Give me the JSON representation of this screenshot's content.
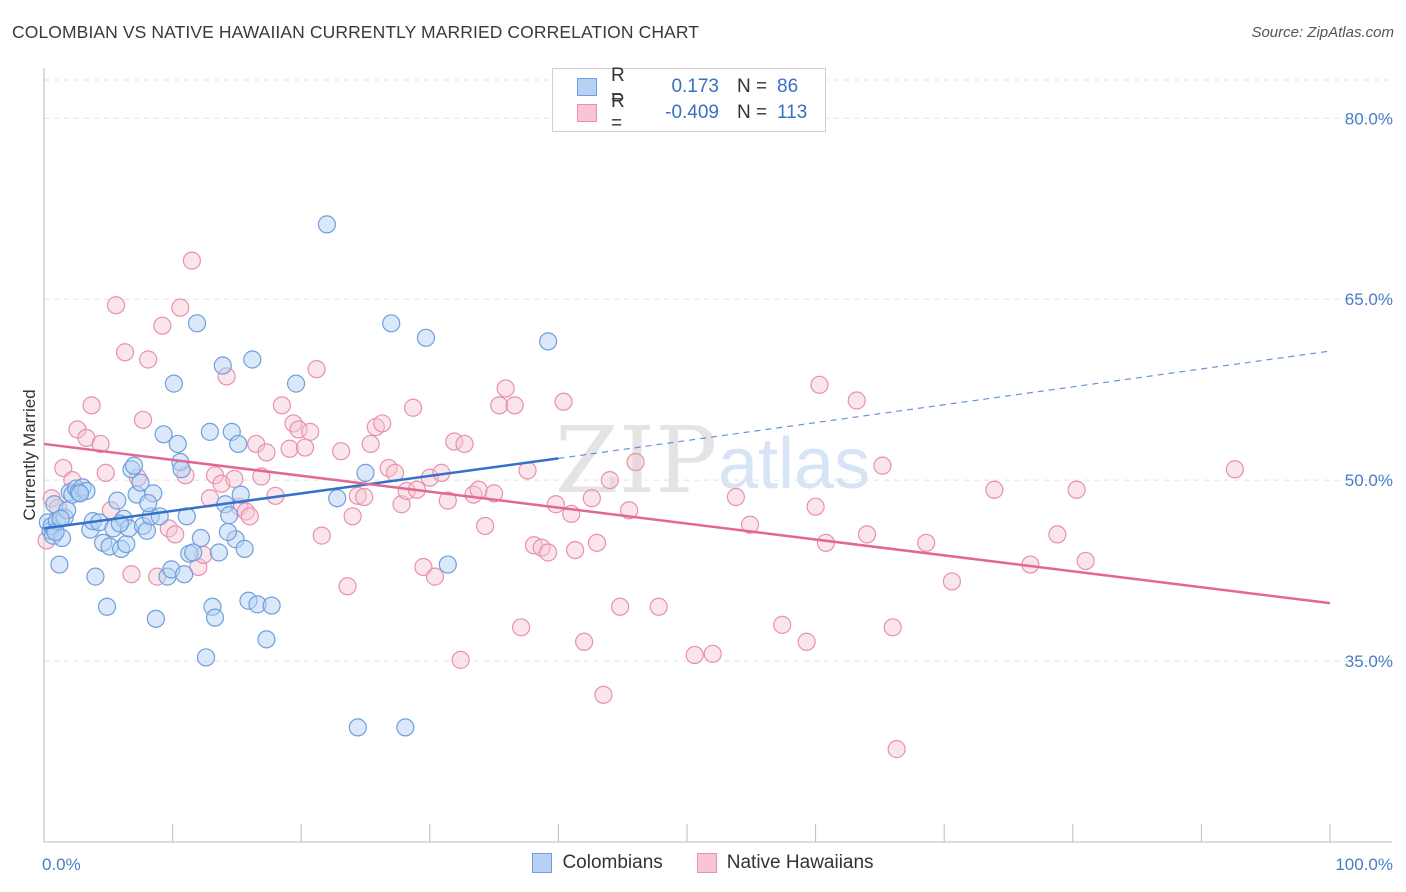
{
  "title": "COLOMBIAN VS NATIVE HAWAIIAN CURRENTLY MARRIED CORRELATION CHART",
  "source": "Source: ZipAtlas.com",
  "watermark": {
    "zip": "ZIP",
    "atlas": "atlas"
  },
  "colors": {
    "blue_fill": "#b6d1f3",
    "blue_stroke": "#6f9fdc",
    "blue_line": "#3571c9",
    "pink_fill": "#f7c5d5",
    "pink_stroke": "#e891ac",
    "pink_line": "#e2688f",
    "grid": "#e2e2e2",
    "tick_label": "#4a7cc7"
  },
  "legend": {
    "rows": [
      {
        "r_label": "R =",
        "r_value": "0.173",
        "n_label": "N =",
        "n_value": "86"
      },
      {
        "r_label": "R =",
        "r_value": "-0.409",
        "n_label": "N =",
        "n_value": "113"
      }
    ]
  },
  "bottom_legend": {
    "colombians": "Colombians",
    "native_hawaiians": "Native Hawaiians"
  },
  "chart_data": {
    "type": "scatter",
    "title": "COLOMBIAN VS NATIVE HAWAIIAN CURRENTLY MARRIED CORRELATION CHART",
    "xlabel": "",
    "ylabel": "Currently Married",
    "xlim": [
      0,
      100
    ],
    "ylim": [
      20,
      84
    ],
    "x_tick_labels": [
      "0.0%",
      "100.0%"
    ],
    "y_ticks": [
      35,
      50,
      65,
      80
    ],
    "y_tick_labels": [
      "35.0%",
      "50.0%",
      "65.0%",
      "80.0%"
    ],
    "grid": true,
    "legend_placement": "top-center",
    "series": [
      {
        "name": "Colombians",
        "r": 0.173,
        "n": 86,
        "trend": {
          "x0": 0,
          "y0": 46.0,
          "x1": 40,
          "y1": 51.8,
          "dashed_to_x": 100,
          "dashed_to_y": 60.7
        },
        "points": [
          [
            0.3,
            46.5
          ],
          [
            0.5,
            45.8
          ],
          [
            0.6,
            46.2
          ],
          [
            0.7,
            45.4
          ],
          [
            0.8,
            48.0
          ],
          [
            1.0,
            46.6
          ],
          [
            1.2,
            43.0
          ],
          [
            1.4,
            45.2
          ],
          [
            1.6,
            46.9
          ],
          [
            1.8,
            47.5
          ],
          [
            2.0,
            49.0
          ],
          [
            2.2,
            48.8
          ],
          [
            2.5,
            49.3
          ],
          [
            2.7,
            49.0
          ],
          [
            3.0,
            49.4
          ],
          [
            3.3,
            49.1
          ],
          [
            3.6,
            45.9
          ],
          [
            3.8,
            46.6
          ],
          [
            4.0,
            42.0
          ],
          [
            4.3,
            46.5
          ],
          [
            4.6,
            44.8
          ],
          [
            4.9,
            39.5
          ],
          [
            5.1,
            44.5
          ],
          [
            5.4,
            46.0
          ],
          [
            5.7,
            48.3
          ],
          [
            6.0,
            44.3
          ],
          [
            6.2,
            46.8
          ],
          [
            6.4,
            44.7
          ],
          [
            6.6,
            46.0
          ],
          [
            6.8,
            50.9
          ],
          [
            7.0,
            51.2
          ],
          [
            7.2,
            48.8
          ],
          [
            7.5,
            49.8
          ],
          [
            7.7,
            46.2
          ],
          [
            8.0,
            45.8
          ],
          [
            8.3,
            47.0
          ],
          [
            8.5,
            48.9
          ],
          [
            8.7,
            38.5
          ],
          [
            9.0,
            47.0
          ],
          [
            9.3,
            53.8
          ],
          [
            9.6,
            42.0
          ],
          [
            9.9,
            42.6
          ],
          [
            10.1,
            58.0
          ],
          [
            10.4,
            53.0
          ],
          [
            10.6,
            51.5
          ],
          [
            10.9,
            42.2
          ],
          [
            11.1,
            47.0
          ],
          [
            11.3,
            43.9
          ],
          [
            11.6,
            44.0
          ],
          [
            11.9,
            63.0
          ],
          [
            12.2,
            45.2
          ],
          [
            12.6,
            35.3
          ],
          [
            12.9,
            54.0
          ],
          [
            13.1,
            39.5
          ],
          [
            13.3,
            38.6
          ],
          [
            13.6,
            44.0
          ],
          [
            13.9,
            59.5
          ],
          [
            14.1,
            48.0
          ],
          [
            14.4,
            47.1
          ],
          [
            14.6,
            54.0
          ],
          [
            14.9,
            45.1
          ],
          [
            15.1,
            53.0
          ],
          [
            15.3,
            48.8
          ],
          [
            15.6,
            44.3
          ],
          [
            15.9,
            40.0
          ],
          [
            16.2,
            60.0
          ],
          [
            16.6,
            39.7
          ],
          [
            17.3,
            36.8
          ],
          [
            17.7,
            39.6
          ],
          [
            19.6,
            58.0
          ],
          [
            22.0,
            71.2
          ],
          [
            22.8,
            48.5
          ],
          [
            24.4,
            29.5
          ],
          [
            25.0,
            50.6
          ],
          [
            28.1,
            29.5
          ],
          [
            27.0,
            63.0
          ],
          [
            29.7,
            61.8
          ],
          [
            31.4,
            43.0
          ],
          [
            39.2,
            61.5
          ],
          [
            0.9,
            45.7
          ],
          [
            1.3,
            46.8
          ],
          [
            2.8,
            48.9
          ],
          [
            5.9,
            46.4
          ],
          [
            8.1,
            48.1
          ],
          [
            10.7,
            50.9
          ],
          [
            14.3,
            45.7
          ]
        ]
      },
      {
        "name": "Native Hawaiians",
        "r": -0.409,
        "n": 113,
        "trend": {
          "x0": 0,
          "y0": 53.0,
          "x1": 100,
          "y1": 39.8
        },
        "points": [
          [
            0.2,
            45.0
          ],
          [
            0.6,
            48.5
          ],
          [
            1.1,
            47.7
          ],
          [
            1.5,
            51.0
          ],
          [
            2.2,
            50.0
          ],
          [
            2.6,
            54.2
          ],
          [
            3.3,
            53.5
          ],
          [
            3.7,
            56.2
          ],
          [
            4.4,
            53.0
          ],
          [
            4.8,
            50.6
          ],
          [
            5.2,
            47.5
          ],
          [
            5.6,
            64.5
          ],
          [
            6.3,
            60.6
          ],
          [
            6.8,
            42.2
          ],
          [
            7.3,
            50.2
          ],
          [
            7.7,
            55.0
          ],
          [
            8.1,
            60.0
          ],
          [
            8.8,
            42.0
          ],
          [
            9.2,
            62.8
          ],
          [
            9.7,
            46.0
          ],
          [
            10.2,
            45.5
          ],
          [
            10.6,
            64.3
          ],
          [
            11.0,
            50.4
          ],
          [
            11.5,
            68.2
          ],
          [
            12.0,
            42.8
          ],
          [
            12.4,
            43.8
          ],
          [
            12.9,
            48.5
          ],
          [
            13.3,
            50.4
          ],
          [
            13.8,
            49.7
          ],
          [
            14.2,
            58.6
          ],
          [
            14.8,
            50.1
          ],
          [
            15.2,
            47.8
          ],
          [
            15.7,
            47.4
          ],
          [
            16.0,
            47.0
          ],
          [
            16.5,
            53.0
          ],
          [
            16.9,
            50.3
          ],
          [
            17.3,
            52.3
          ],
          [
            18.0,
            48.7
          ],
          [
            18.5,
            56.2
          ],
          [
            19.1,
            52.6
          ],
          [
            19.4,
            54.7
          ],
          [
            19.8,
            54.2
          ],
          [
            20.3,
            52.7
          ],
          [
            20.7,
            54.0
          ],
          [
            21.2,
            59.2
          ],
          [
            21.6,
            45.4
          ],
          [
            23.1,
            52.4
          ],
          [
            23.6,
            41.2
          ],
          [
            24.0,
            47.0
          ],
          [
            24.4,
            48.7
          ],
          [
            24.9,
            48.6
          ],
          [
            25.4,
            53.0
          ],
          [
            25.8,
            54.4
          ],
          [
            26.3,
            54.7
          ],
          [
            26.8,
            51.0
          ],
          [
            27.3,
            50.6
          ],
          [
            27.8,
            48.0
          ],
          [
            28.2,
            49.1
          ],
          [
            28.7,
            56.0
          ],
          [
            29.0,
            49.2
          ],
          [
            29.5,
            42.8
          ],
          [
            30.0,
            50.2
          ],
          [
            30.4,
            42.0
          ],
          [
            30.9,
            50.6
          ],
          [
            31.4,
            48.3
          ],
          [
            31.9,
            53.2
          ],
          [
            32.4,
            35.1
          ],
          [
            32.7,
            53.0
          ],
          [
            33.4,
            48.8
          ],
          [
            33.8,
            49.2
          ],
          [
            34.3,
            46.2
          ],
          [
            35.0,
            48.9
          ],
          [
            35.4,
            56.2
          ],
          [
            35.9,
            57.6
          ],
          [
            36.6,
            56.2
          ],
          [
            37.1,
            37.8
          ],
          [
            37.6,
            50.8
          ],
          [
            38.1,
            44.6
          ],
          [
            38.7,
            44.4
          ],
          [
            39.2,
            44.0
          ],
          [
            39.8,
            48.0
          ],
          [
            40.4,
            56.5
          ],
          [
            41.0,
            47.2
          ],
          [
            41.3,
            44.2
          ],
          [
            42.0,
            36.6
          ],
          [
            42.6,
            48.5
          ],
          [
            43.0,
            44.8
          ],
          [
            43.5,
            32.2
          ],
          [
            44.0,
            50.0
          ],
          [
            44.8,
            39.5
          ],
          [
            45.5,
            47.5
          ],
          [
            46.0,
            51.5
          ],
          [
            47.8,
            39.5
          ],
          [
            50.6,
            35.5
          ],
          [
            52.0,
            35.6
          ],
          [
            53.8,
            48.6
          ],
          [
            54.9,
            46.3
          ],
          [
            57.4,
            38.0
          ],
          [
            59.3,
            36.6
          ],
          [
            60.0,
            47.8
          ],
          [
            60.3,
            57.9
          ],
          [
            60.8,
            44.8
          ],
          [
            63.2,
            56.6
          ],
          [
            64.0,
            45.5
          ],
          [
            65.2,
            51.2
          ],
          [
            66.0,
            37.8
          ],
          [
            66.3,
            27.7
          ],
          [
            68.6,
            44.8
          ],
          [
            70.6,
            41.6
          ],
          [
            73.9,
            49.2
          ],
          [
            76.7,
            43.0
          ],
          [
            78.8,
            45.5
          ],
          [
            80.3,
            49.2
          ],
          [
            81.0,
            43.3
          ],
          [
            92.6,
            50.9
          ]
        ]
      }
    ]
  }
}
